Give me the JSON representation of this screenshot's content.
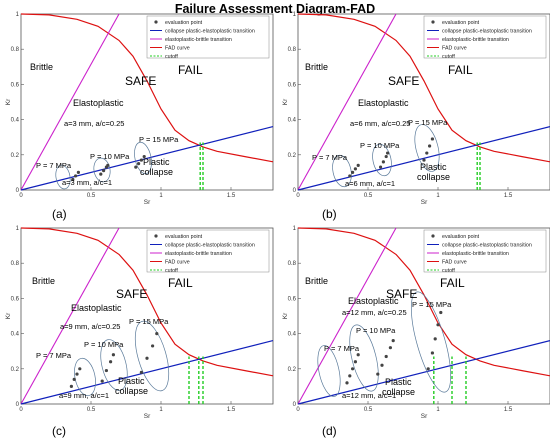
{
  "title": "Failure Assessment Diagram-FAD",
  "colors": {
    "fad": "#dd1111",
    "brittle": "#cc22cc",
    "collapse": "#1020bb",
    "cutoff": "#22cc22",
    "point": "#444444",
    "ellipse": "#5a7a9a"
  },
  "legend_entries": [
    "evaluation point",
    "collapse plastic-elastoplastic transition",
    "elastoplastic-brittle transition",
    "FAD curve",
    "cutoff"
  ],
  "axis_labels": {
    "x": "Sr",
    "y": "Kr"
  },
  "x_ticks": [
    "0",
    "0.5",
    "1",
    "1.5"
  ],
  "y_ticks": [
    "0",
    "0.2",
    "0.4",
    "0.6",
    "0.8",
    "1"
  ],
  "region_labels": {
    "brittle": "Brittle",
    "safe": "SAFE",
    "fail": "FAIL",
    "elastoplastic": "Elastoplastic",
    "plastic_collapse": "Plastic\ncollapse"
  },
  "chart_data": [
    {
      "type": "scatter",
      "panel_label": "(a)",
      "xlim": [
        0,
        1.8
      ],
      "ylim": [
        0,
        1
      ],
      "fad_curve": {
        "x": [
          0,
          0.2,
          0.4,
          0.55,
          0.7,
          0.8,
          0.9,
          1.0,
          1.1,
          1.2,
          1.3,
          1.4,
          1.6,
          1.8
        ],
        "y": [
          1.0,
          0.995,
          0.97,
          0.93,
          0.85,
          0.76,
          0.62,
          0.46,
          0.34,
          0.28,
          0.245,
          0.22,
          0.19,
          0.16
        ]
      },
      "brittle_line": {
        "x": [
          0,
          0.7
        ],
        "y": [
          0,
          1.0
        ]
      },
      "collapse_line": {
        "x": [
          0,
          1.8
        ],
        "y": [
          0,
          0.36
        ]
      },
      "cutoff_x": [
        1.28,
        1.3
      ],
      "annotations": [
        "a=3 mm, a/c=0.25",
        "a=3 mm, a/c=1"
      ],
      "series": [
        {
          "name": "P = 7 MPa",
          "x": [
            0.37,
            0.39,
            0.41
          ],
          "y": [
            0.06,
            0.08,
            0.1
          ]
        },
        {
          "name": "P = 10 MPa",
          "x": [
            0.57,
            0.59,
            0.61,
            0.62
          ],
          "y": [
            0.09,
            0.11,
            0.13,
            0.14
          ]
        },
        {
          "name": "P = 15 MPa",
          "x": [
            0.82,
            0.84,
            0.86,
            0.88
          ],
          "y": [
            0.13,
            0.15,
            0.17,
            0.19
          ]
        }
      ]
    },
    {
      "type": "scatter",
      "panel_label": "(b)",
      "xlim": [
        0,
        1.8
      ],
      "ylim": [
        0,
        1
      ],
      "fad_curve": {
        "x": [
          0,
          0.2,
          0.4,
          0.55,
          0.7,
          0.8,
          0.9,
          1.0,
          1.1,
          1.2,
          1.3,
          1.4,
          1.6,
          1.8
        ],
        "y": [
          1.0,
          0.995,
          0.97,
          0.93,
          0.85,
          0.76,
          0.62,
          0.46,
          0.34,
          0.28,
          0.245,
          0.22,
          0.19,
          0.16
        ]
      },
      "brittle_line": {
        "x": [
          0,
          0.7
        ],
        "y": [
          0,
          1.0
        ]
      },
      "collapse_line": {
        "x": [
          0,
          1.8
        ],
        "y": [
          0,
          0.36
        ]
      },
      "cutoff_x": [
        1.28,
        1.3
      ],
      "annotations": [
        "a=6 mm, a/c=0.25",
        "a=6 mm, a/c=1"
      ],
      "series": [
        {
          "name": "P = 7 MPa",
          "x": [
            0.37,
            0.39,
            0.41,
            0.43
          ],
          "y": [
            0.08,
            0.1,
            0.12,
            0.14
          ]
        },
        {
          "name": "P = 10 MPa",
          "x": [
            0.59,
            0.61,
            0.63,
            0.64
          ],
          "y": [
            0.13,
            0.16,
            0.19,
            0.21
          ]
        },
        {
          "name": "P = 15 MPa",
          "x": [
            0.9,
            0.92,
            0.94,
            0.96
          ],
          "y": [
            0.17,
            0.21,
            0.25,
            0.29
          ]
        }
      ]
    },
    {
      "type": "scatter",
      "panel_label": "(c)",
      "xlim": [
        0,
        1.8
      ],
      "ylim": [
        0,
        1
      ],
      "fad_curve": {
        "x": [
          0,
          0.2,
          0.4,
          0.55,
          0.7,
          0.8,
          0.9,
          1.0,
          1.1,
          1.2,
          1.3,
          1.4,
          1.6,
          1.8
        ],
        "y": [
          1.0,
          0.995,
          0.97,
          0.93,
          0.85,
          0.76,
          0.62,
          0.46,
          0.34,
          0.28,
          0.245,
          0.22,
          0.19,
          0.16
        ]
      },
      "brittle_line": {
        "x": [
          0,
          0.7
        ],
        "y": [
          0,
          1.0
        ]
      },
      "collapse_line": {
        "x": [
          0,
          1.8
        ],
        "y": [
          0,
          0.36
        ]
      },
      "cutoff_x": [
        1.2,
        1.27,
        1.3
      ],
      "annotations": [
        "a=9 mm, a/c=0.25",
        "a=9 mm, a/c=1"
      ],
      "series": [
        {
          "name": "P = 7 MPa",
          "x": [
            0.36,
            0.38,
            0.4,
            0.42
          ],
          "y": [
            0.1,
            0.14,
            0.17,
            0.2
          ]
        },
        {
          "name": "P = 10 MPa",
          "x": [
            0.58,
            0.61,
            0.64,
            0.66
          ],
          "y": [
            0.13,
            0.19,
            0.24,
            0.28
          ]
        },
        {
          "name": "P = 15 MPa",
          "x": [
            0.86,
            0.9,
            0.94,
            0.97
          ],
          "y": [
            0.18,
            0.26,
            0.33,
            0.4
          ]
        }
      ]
    },
    {
      "type": "scatter",
      "panel_label": "(d)",
      "xlim": [
        0,
        1.8
      ],
      "ylim": [
        0,
        1
      ],
      "fad_curve": {
        "x": [
          0,
          0.2,
          0.4,
          0.55,
          0.7,
          0.8,
          0.9,
          1.0,
          1.1,
          1.2,
          1.3,
          1.4,
          1.6,
          1.8
        ],
        "y": [
          1.0,
          0.995,
          0.97,
          0.93,
          0.85,
          0.76,
          0.62,
          0.46,
          0.34,
          0.28,
          0.245,
          0.22,
          0.19,
          0.16
        ]
      },
      "brittle_line": {
        "x": [
          0,
          0.7
        ],
        "y": [
          0,
          1.0
        ]
      },
      "collapse_line": {
        "x": [
          0,
          1.8
        ],
        "y": [
          0,
          0.36
        ]
      },
      "cutoff_x": [
        0.97,
        1.1,
        1.2
      ],
      "annotations": [
        "a=12 mm, a/c=0.25",
        "a=12 mm, a/c=1"
      ],
      "series": [
        {
          "name": "P = 7 MPa",
          "x": [
            0.35,
            0.37,
            0.39,
            0.41,
            0.43
          ],
          "y": [
            0.12,
            0.16,
            0.2,
            0.24,
            0.28
          ]
        },
        {
          "name": "P = 10 MPa",
          "x": [
            0.57,
            0.6,
            0.63,
            0.66,
            0.68
          ],
          "y": [
            0.17,
            0.22,
            0.27,
            0.32,
            0.36
          ]
        },
        {
          "name": "P = 15 MPa",
          "x": [
            0.93,
            0.96,
            0.98,
            1.0,
            1.02
          ],
          "y": [
            0.2,
            0.29,
            0.37,
            0.45,
            0.52
          ]
        }
      ]
    }
  ]
}
